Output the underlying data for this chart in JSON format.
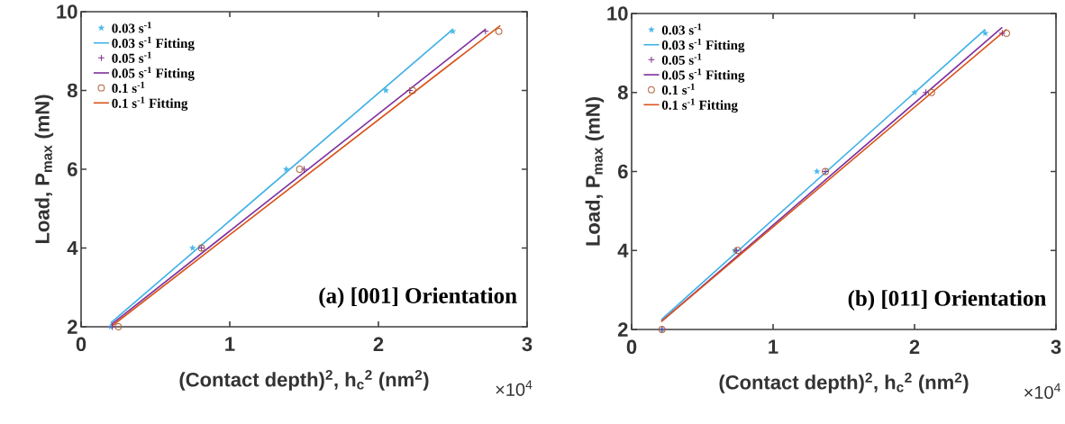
{
  "chart_data": [
    {
      "type": "scatter",
      "xlabel": "(Contact depth)$^{2}$, h$_{c}$$^{2}$ (nm$^{2}$)",
      "ylabel": "Load, P$_{max}$ (mN)",
      "xlim": [
        0,
        3
      ],
      "ylim": [
        2,
        10
      ],
      "xticks": [
        0,
        1,
        2,
        3
      ],
      "yticks": [
        2,
        4,
        6,
        8,
        10
      ],
      "legend": "top left",
      "annotations": [
        "(a) [001] Orientation",
        "×10$^{4}$"
      ],
      "series": [
        {
          "name": "0.03 s$^{-1}$",
          "marker": "star",
          "color": "#4db8ea",
          "x": [
            0.2,
            0.75,
            1.38,
            2.05,
            2.5
          ],
          "values": [
            2,
            4,
            6,
            8,
            9.5
          ]
        },
        {
          "name": "0.03 s$^{-1}$ Fitting",
          "type": "line",
          "color": "#3fb0e6",
          "x": [
            0.2,
            2.5
          ],
          "values": [
            2.1,
            9.55
          ]
        },
        {
          "name": "0.05 s$^{-1}$",
          "marker": "cross",
          "color": "#7e2f8e",
          "x": [
            0.21,
            0.81,
            1.5,
            2.21,
            2.72
          ],
          "values": [
            2,
            4,
            6,
            8,
            9.5
          ]
        },
        {
          "name": "0.05 s$^{-1}$ Fitting",
          "type": "line",
          "color": "#7e2f9e",
          "x": [
            0.2,
            2.72
          ],
          "values": [
            2.05,
            9.55
          ]
        },
        {
          "name": "0.1 s$^{-1}$",
          "marker": "circle",
          "color": "#b0623a",
          "x": [
            0.25,
            0.81,
            1.47,
            2.23,
            2.81
          ],
          "values": [
            2,
            4,
            6,
            8,
            9.5
          ]
        },
        {
          "name": "0.1 s$^{-1}$ Fitting",
          "type": "line",
          "color": "#d95319",
          "x": [
            0.2,
            2.82
          ],
          "values": [
            2.0,
            9.65
          ]
        }
      ]
    },
    {
      "type": "scatter",
      "xlabel": "(Contact depth)$^{2}$, h$_{c}$$^{2}$ (nm$^{2}$)",
      "ylabel": "Load, P$_{max}$ (mN)",
      "xlim": [
        0,
        3
      ],
      "ylim": [
        2,
        10
      ],
      "xticks": [
        0,
        1,
        2,
        3
      ],
      "yticks": [
        2,
        4,
        6,
        8,
        10
      ],
      "legend": "top left",
      "annotations": [
        "(b) [011] Orientation",
        "×10$^{4}$"
      ],
      "series": [
        {
          "name": "0.03 s$^{-1}$",
          "marker": "star",
          "color": "#4db8ea",
          "x": [
            0.215,
            0.73,
            1.31,
            2.0,
            2.5
          ],
          "values": [
            2,
            4,
            6,
            8,
            9.5
          ]
        },
        {
          "name": "0.03 s$^{-1}$ Fitting",
          "type": "line",
          "color": "#3fb0e6",
          "x": [
            0.21,
            2.5
          ],
          "values": [
            2.25,
            9.6
          ]
        },
        {
          "name": "0.05 s$^{-1}$",
          "marker": "cross",
          "color": "#7e2f8e",
          "x": [
            0.215,
            0.74,
            1.37,
            2.08,
            2.62
          ],
          "values": [
            2,
            4,
            6,
            8,
            9.5
          ]
        },
        {
          "name": "0.05 s$^{-1}$ Fitting",
          "type": "line",
          "color": "#7e2f9e",
          "x": [
            0.21,
            2.62
          ],
          "values": [
            2.2,
            9.65
          ]
        },
        {
          "name": "0.1 s$^{-1}$",
          "marker": "circle",
          "color": "#b0623a",
          "x": [
            0.215,
            0.75,
            1.37,
            2.12,
            2.65
          ],
          "values": [
            2,
            4,
            6,
            8,
            9.5
          ]
        },
        {
          "name": "0.1 s$^{-1}$ Fitting",
          "type": "line",
          "color": "#d95319",
          "x": [
            0.21,
            2.65
          ],
          "values": [
            2.2,
            9.6
          ]
        }
      ]
    }
  ]
}
